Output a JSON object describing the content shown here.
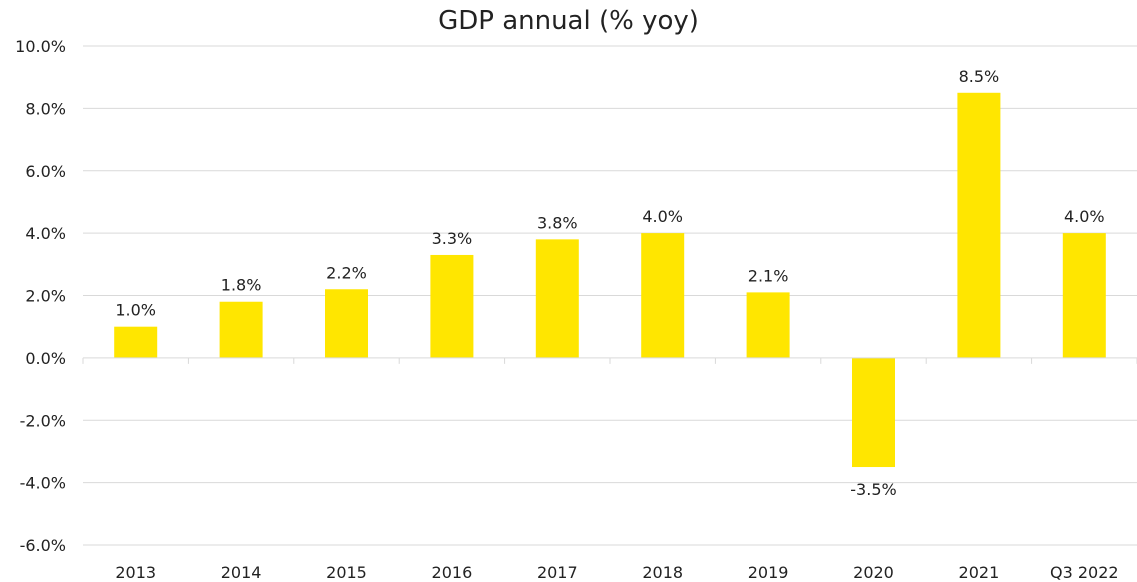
{
  "chart_data": {
    "type": "bar",
    "title": "GDP annual (% yoy)",
    "categories": [
      "2013",
      "2014",
      "2015",
      "2016",
      "2017",
      "2018",
      "2019",
      "2020",
      "2021",
      "Q3 2022"
    ],
    "values": [
      1.0,
      1.8,
      2.2,
      3.3,
      3.8,
      4.0,
      2.1,
      -3.5,
      8.5,
      4.0
    ],
    "data_labels": [
      "1.0%",
      "1.8%",
      "2.2%",
      "3.3%",
      "3.8%",
      "4.0%",
      "2.1%",
      "-3.5%",
      "8.5%",
      "4.0%"
    ],
    "ylim": [
      -6,
      10
    ],
    "yticks": [
      10,
      8,
      6,
      4,
      2,
      0,
      -2,
      -4,
      -6
    ],
    "ytick_labels": [
      "10.0%",
      "8.0%",
      "6.0%",
      "4.0%",
      "2.0%",
      "0.0%",
      "-2.0%",
      "-4.0%",
      "-6.0%"
    ],
    "xlabel": "",
    "ylabel": "",
    "grid": true,
    "legend": "none",
    "bar_color": "#FFE600"
  }
}
